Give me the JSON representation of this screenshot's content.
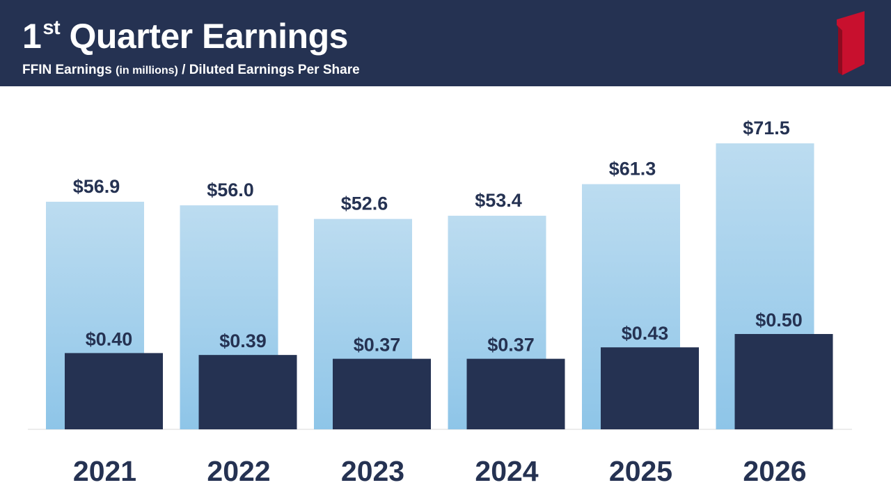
{
  "header": {
    "title_main": "1",
    "title_sup": "st",
    "title_rest": " Quarter Earnings",
    "subtitle_bold": "FFIN Earnings ",
    "subtitle_small": "(in millions)",
    "subtitle_rest": " / Diluted Earnings Per Share",
    "logo_icon": "red-numeral-one-logo-icon"
  },
  "colors": {
    "header_bg": "#253252",
    "earnings_bar_top": "#BCDCF0",
    "earnings_bar_bottom": "#8EC5E8",
    "eps_bar": "#253252",
    "label_text": "#253252",
    "logo_red": "#C8102E"
  },
  "chart_data": {
    "type": "bar",
    "title": "1st Quarter Earnings",
    "subtitle": "FFIN Earnings (in millions) / Diluted Earnings Per Share",
    "categories": [
      "2021",
      "2022",
      "2023",
      "2024",
      "2025",
      "2026"
    ],
    "series": [
      {
        "name": "FFIN Earnings",
        "values": [
          56.9,
          56.0,
          52.6,
          53.4,
          61.3,
          71.5
        ],
        "labels": [
          "$56.9",
          "$56.0",
          "$52.6",
          "$53.4",
          "$61.3",
          "$71.5"
        ]
      },
      {
        "name": "Diluted Earnings Per Share",
        "values": [
          0.4,
          0.39,
          0.37,
          0.37,
          0.43,
          0.5
        ],
        "labels": [
          "$0.40",
          "$0.39",
          "$0.37",
          "$0.37",
          "$0.43",
          "$0.50"
        ]
      }
    ],
    "earnings_ylim": [
      0,
      71.5
    ],
    "eps_ylim": [
      0,
      0.5
    ],
    "grid": false,
    "legend": "none"
  }
}
